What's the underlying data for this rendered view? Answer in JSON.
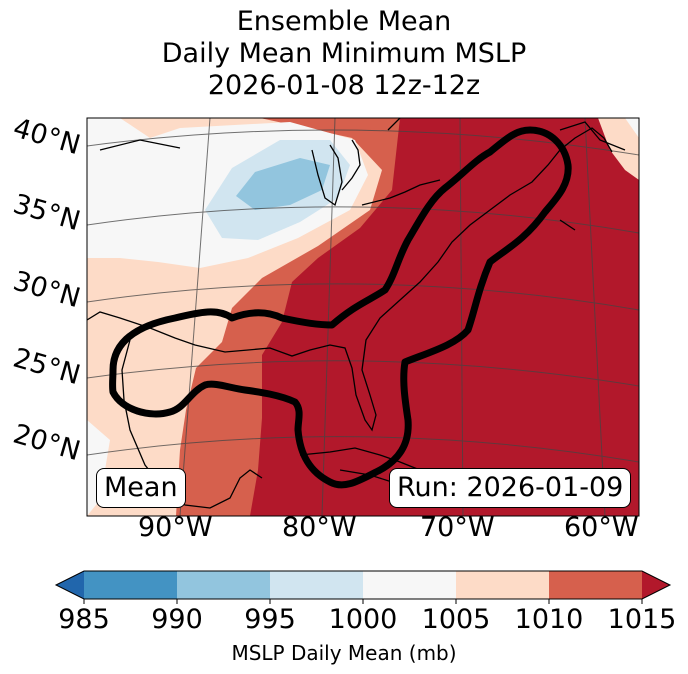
{
  "title": {
    "line1": "Ensemble Mean",
    "line2": "Daily Mean Minimum MSLP",
    "line3": "2026-01-08 12z-12z"
  },
  "map": {
    "lat_labels": [
      "40°N",
      "35°N",
      "30°N",
      "25°N",
      "20°N"
    ],
    "lon_labels": [
      "90°W",
      "80°W",
      "70°W",
      "60°W"
    ],
    "mean_label": "Mean",
    "run_label": "Run: 2026-01-09",
    "field_colors": {
      "c1010_1015": "#b2182b",
      "c1005_1010": "#d6604d",
      "c1000_1005": "#fddbc7",
      "c995_1000": "#f7f7f7",
      "c990_995": "#d1e5f0",
      "c985_990": "#92c5de"
    },
    "contour_color": "#000000"
  },
  "colorbar": {
    "tick_labels": [
      "985",
      "990",
      "995",
      "1000",
      "1005",
      "1010",
      "1015"
    ],
    "colors": [
      "#2166ac",
      "#4393c3",
      "#92c5de",
      "#d1e5f0",
      "#f7f7f7",
      "#fddbc7",
      "#d6604d",
      "#b2182b"
    ],
    "label": "MSLP Daily Mean (mb)"
  }
}
